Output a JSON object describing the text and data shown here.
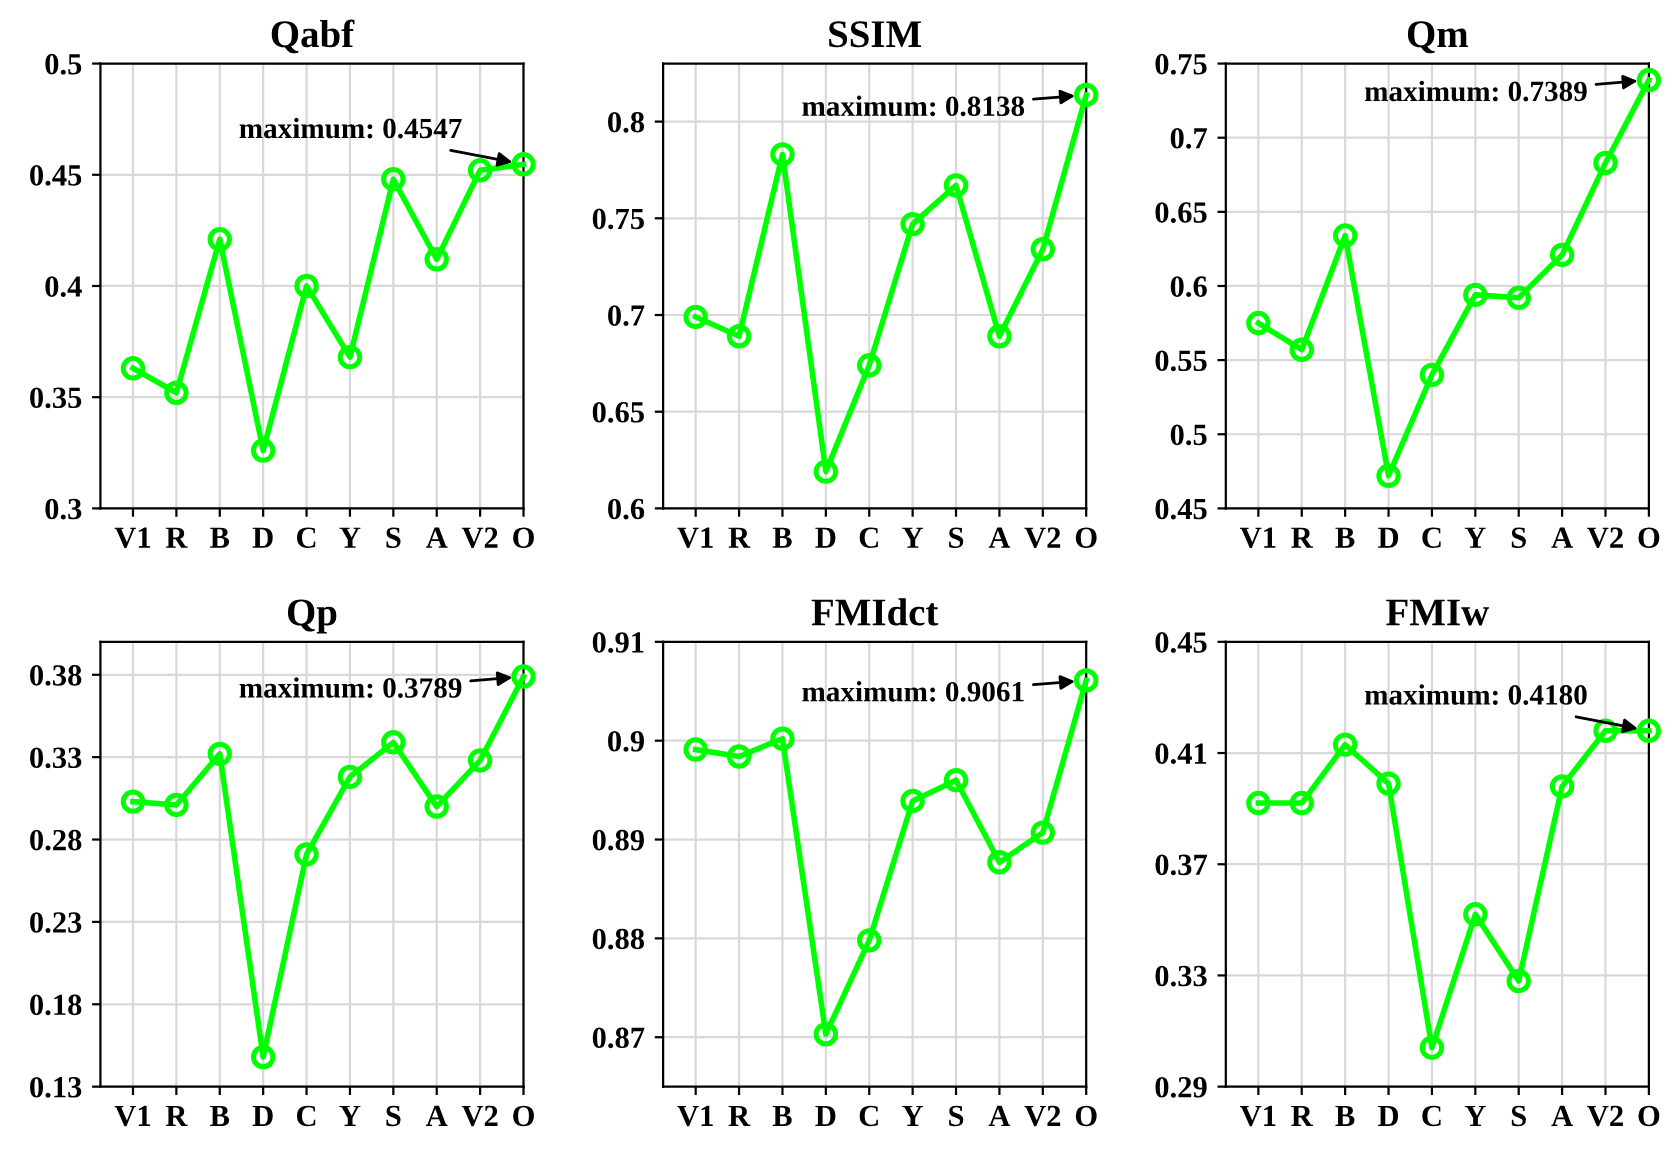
{
  "chart_data": [
    {
      "type": "line",
      "title": "Qabf",
      "categories": [
        "V1",
        "R",
        "B",
        "D",
        "C",
        "Y",
        "S",
        "A",
        "V2",
        "O"
      ],
      "series": [
        {
          "color": "#00ff00",
          "values": [
            0.363,
            0.352,
            0.421,
            0.326,
            0.4,
            0.368,
            0.448,
            0.412,
            0.452,
            0.4547
          ]
        }
      ],
      "ylim": [
        0.3,
        0.5
      ],
      "yticks": [
        0.3,
        0.35,
        0.4,
        0.45,
        0.5
      ],
      "grid": true,
      "marker": "circle",
      "line_style": "solid",
      "annotations": [
        {
          "text": "maximum: 0.4547",
          "x": "O",
          "y": 0.4547
        }
      ]
    },
    {
      "type": "line",
      "title": "SSIM",
      "categories": [
        "V1",
        "R",
        "B",
        "D",
        "C",
        "Y",
        "S",
        "A",
        "V2",
        "O"
      ],
      "series": [
        {
          "color": "#00ff00",
          "values": [
            0.699,
            0.689,
            0.783,
            0.619,
            0.674,
            0.747,
            0.767,
            0.689,
            0.734,
            0.8138
          ]
        }
      ],
      "ylim": [
        0.6,
        0.83
      ],
      "yticks": [
        0.6,
        0.65,
        0.7,
        0.75,
        0.8
      ],
      "grid": true,
      "marker": "circle",
      "line_style": "solid",
      "annotations": [
        {
          "text": "maximum: 0.8138",
          "x": "O",
          "y": 0.8138
        }
      ]
    },
    {
      "type": "line",
      "title": "Qm",
      "categories": [
        "V1",
        "R",
        "B",
        "D",
        "C",
        "Y",
        "S",
        "A",
        "V2",
        "O"
      ],
      "series": [
        {
          "color": "#00ff00",
          "values": [
            0.575,
            0.557,
            0.634,
            0.472,
            0.54,
            0.594,
            0.592,
            0.621,
            0.683,
            0.7389
          ]
        }
      ],
      "ylim": [
        0.45,
        0.75
      ],
      "yticks": [
        0.45,
        0.5,
        0.55,
        0.6,
        0.65,
        0.7,
        0.75
      ],
      "grid": true,
      "marker": "circle",
      "line_style": "solid",
      "annotations": [
        {
          "text": "maximum: 0.7389",
          "x": "O",
          "y": 0.7389
        }
      ]
    },
    {
      "type": "line",
      "title": "Qp",
      "categories": [
        "V1",
        "R",
        "B",
        "D",
        "C",
        "Y",
        "S",
        "A",
        "V2",
        "O"
      ],
      "series": [
        {
          "color": "#00ff00",
          "values": [
            0.303,
            0.301,
            0.332,
            0.148,
            0.271,
            0.318,
            0.339,
            0.3,
            0.328,
            0.3789
          ]
        }
      ],
      "ylim": [
        0.13,
        0.4
      ],
      "yticks": [
        0.13,
        0.18,
        0.23,
        0.28,
        0.33,
        0.38
      ],
      "grid": true,
      "marker": "circle",
      "line_style": "solid",
      "annotations": [
        {
          "text": "maximum: 0.3789",
          "x": "O",
          "y": 0.3789
        }
      ]
    },
    {
      "type": "line",
      "title": "FMIdct",
      "categories": [
        "V1",
        "R",
        "B",
        "D",
        "C",
        "Y",
        "S",
        "A",
        "V2",
        "O"
      ],
      "series": [
        {
          "color": "#00ff00",
          "values": [
            0.8991,
            0.8984,
            0.9002,
            0.8703,
            0.8798,
            0.8939,
            0.896,
            0.8877,
            0.8907,
            0.9061
          ]
        }
      ],
      "ylim": [
        0.865,
        0.91
      ],
      "yticks": [
        0.87,
        0.88,
        0.89,
        0.9,
        0.91
      ],
      "grid": true,
      "marker": "circle",
      "line_style": "solid",
      "annotations": [
        {
          "text": "maximum: 0.9061",
          "x": "O",
          "y": 0.9061
        }
      ]
    },
    {
      "type": "line",
      "title": "FMIw",
      "categories": [
        "V1",
        "R",
        "B",
        "D",
        "C",
        "Y",
        "S",
        "A",
        "V2",
        "O"
      ],
      "series": [
        {
          "color": "#00ff00",
          "values": [
            0.392,
            0.392,
            0.413,
            0.399,
            0.304,
            0.352,
            0.328,
            0.398,
            0.418,
            0.418
          ]
        }
      ],
      "ylim": [
        0.29,
        0.45
      ],
      "yticks": [
        0.29,
        0.33,
        0.37,
        0.41,
        0.45
      ],
      "grid": true,
      "marker": "circle",
      "line_style": "solid",
      "annotations": [
        {
          "text": "maximum: 0.4180",
          "x": "O",
          "y": 0.418
        }
      ]
    }
  ]
}
